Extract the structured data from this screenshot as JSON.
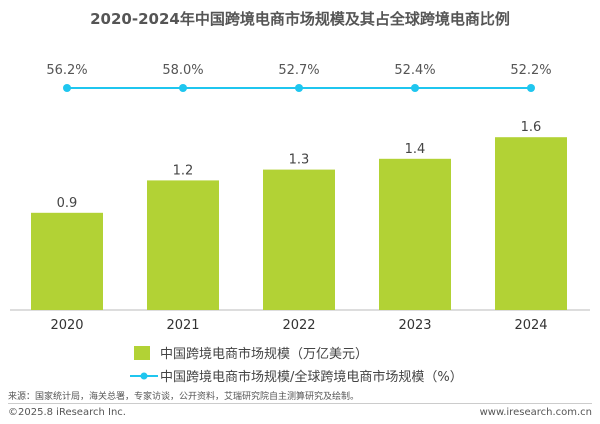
{
  "chart_data": {
    "type": "bar+line",
    "title": "2020-2024年中国跨境电商市场规模及其占全球跨境电商比例",
    "categories": [
      "2020",
      "2021",
      "2022",
      "2023",
      "2024"
    ],
    "series": [
      {
        "name": "中国跨境电商市场规模（万亿美元）",
        "type": "bar",
        "values": [
          0.9,
          1.2,
          1.3,
          1.4,
          1.6
        ],
        "labels": [
          "0.9",
          "1.2",
          "1.3",
          "1.4",
          "1.6"
        ],
        "color": "#b2d235"
      },
      {
        "name": "中国跨境电商市场规模/全球跨境电商市场规模（%）",
        "type": "line",
        "values": [
          56.2,
          58.0,
          52.7,
          52.4,
          52.2
        ],
        "labels": [
          "56.2%",
          "58.0%",
          "52.7%",
          "52.4%",
          "52.2%"
        ],
        "color": "#1fc6ef"
      }
    ],
    "legend": "bottom",
    "grid": false
  },
  "footer": {
    "source": "来源：国家统计局，海关总署，专家访谈，公开资料，艾瑞研究院自主测算研究及绘制。",
    "copyright": "©2025.8 iResearch Inc.",
    "url": "www.iresearch.com.cn"
  }
}
